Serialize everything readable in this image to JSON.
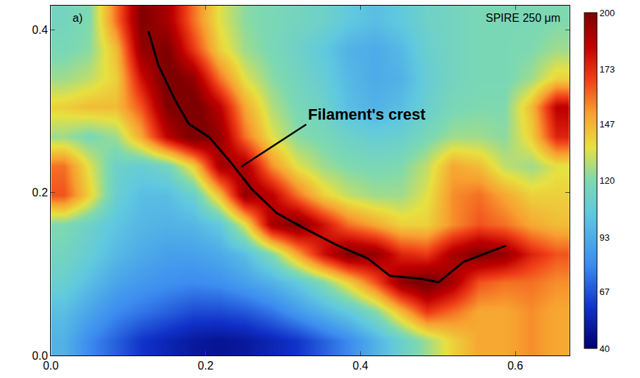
{
  "chart_data": {
    "type": "heatmap",
    "annotations": [
      "a)",
      "SPIRE 250 μm",
      "Filament's crest"
    ],
    "xlim": [
      0,
      0.67
    ],
    "ylim": [
      0,
      0.43
    ],
    "xticks": [
      {
        "value": 0,
        "label": "0.0"
      },
      0.2,
      0.4,
      0.6
    ],
    "yticks": [
      {
        "value": 0,
        "label": "0.0"
      },
      0.2,
      0.4
    ],
    "x": [
      0.017,
      0.05,
      0.084,
      0.117,
      0.151,
      0.184,
      0.218,
      0.251,
      0.285,
      0.318,
      0.352,
      0.385,
      0.419,
      0.452,
      0.486,
      0.519,
      0.553,
      0.586,
      0.62,
      0.653
    ],
    "y": [
      0.018,
      0.054,
      0.09,
      0.125,
      0.161,
      0.197,
      0.233,
      0.269,
      0.305,
      0.34,
      0.376,
      0.412
    ],
    "z": [
      [
        95,
        80,
        70,
        60,
        55,
        50,
        48,
        50,
        55,
        60,
        70,
        80,
        95,
        110,
        125,
        140,
        150,
        150,
        155,
        150
      ],
      [
        100,
        90,
        80,
        75,
        70,
        65,
        65,
        68,
        75,
        85,
        95,
        105,
        120,
        145,
        170,
        160,
        150,
        150,
        155,
        150
      ],
      [
        110,
        100,
        90,
        85,
        82,
        80,
        82,
        88,
        95,
        105,
        120,
        140,
        165,
        195,
        205,
        190,
        165,
        160,
        160,
        155
      ],
      [
        115,
        108,
        98,
        92,
        88,
        88,
        92,
        100,
        120,
        150,
        180,
        200,
        195,
        175,
        170,
        190,
        200,
        195,
        175,
        165
      ],
      [
        120,
        112,
        103,
        97,
        95,
        97,
        105,
        135,
        190,
        200,
        180,
        160,
        150,
        140,
        140,
        155,
        165,
        160,
        150,
        145
      ],
      [
        165,
        140,
        110,
        100,
        100,
        110,
        145,
        195,
        185,
        160,
        140,
        130,
        125,
        125,
        135,
        155,
        160,
        150,
        140,
        140
      ],
      [
        160,
        135,
        112,
        108,
        115,
        140,
        190,
        190,
        155,
        135,
        125,
        120,
        118,
        120,
        130,
        150,
        145,
        130,
        125,
        135
      ],
      [
        125,
        118,
        125,
        150,
        185,
        205,
        195,
        160,
        135,
        122,
        118,
        112,
        108,
        110,
        118,
        125,
        125,
        122,
        140,
        175
      ],
      [
        140,
        145,
        145,
        165,
        200,
        205,
        185,
        150,
        128,
        118,
        112,
        100,
        95,
        100,
        110,
        118,
        120,
        120,
        145,
        185
      ],
      [
        125,
        130,
        140,
        180,
        205,
        195,
        160,
        135,
        122,
        115,
        108,
        98,
        92,
        95,
        108,
        115,
        118,
        118,
        125,
        140
      ],
      [
        118,
        122,
        145,
        195,
        200,
        170,
        140,
        125,
        118,
        112,
        105,
        95,
        92,
        98,
        110,
        115,
        118,
        118,
        120,
        125
      ],
      [
        115,
        120,
        160,
        200,
        190,
        160,
        135,
        122,
        118,
        115,
        112,
        105,
        100,
        105,
        112,
        115,
        118,
        118,
        118,
        120
      ]
    ],
    "colorbar": {
      "range": [
        40,
        200
      ],
      "ticks": [
        40,
        67,
        93,
        120,
        147,
        173,
        200
      ]
    },
    "crest": {
      "color": "#000000",
      "x": [
        0.126,
        0.139,
        0.16,
        0.178,
        0.205,
        0.232,
        0.26,
        0.292,
        0.324,
        0.369,
        0.41,
        0.438,
        0.479,
        0.501,
        0.533,
        0.588
      ],
      "y": [
        0.399,
        0.357,
        0.315,
        0.285,
        0.268,
        0.238,
        0.204,
        0.175,
        0.158,
        0.136,
        0.119,
        0.098,
        0.094,
        0.09,
        0.115,
        0.135
      ]
    }
  }
}
